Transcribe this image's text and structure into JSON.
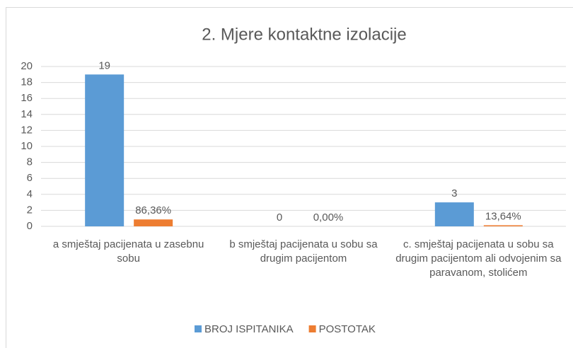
{
  "chart_data": {
    "type": "bar",
    "title": "2. Mjere kontaktne izolacije",
    "categories": [
      "a smještaj pacijenata u zasebnu sobu",
      "b smještaj pacijenata u sobu sa drugim pacijentom",
      "c. smještaj pacijenata u sobu sa drugim pacijentom ali odvojenim sa paravanom, stolićem"
    ],
    "series": [
      {
        "name": "BROJ ISPITANIKA",
        "color": "#5b9bd5",
        "values": [
          19,
          0,
          3
        ]
      },
      {
        "name": "POSTOTAK",
        "color": "#ed7d31",
        "values": [
          0.8636,
          0,
          0.1364
        ],
        "value_labels": [
          "86,36%",
          "0,00%",
          "13,64%"
        ]
      }
    ],
    "ylim": [
      0,
      20
    ],
    "yticks": [
      0,
      2,
      4,
      6,
      8,
      10,
      12,
      14,
      16,
      18,
      20
    ],
    "grid": true,
    "legend": "bottom"
  }
}
